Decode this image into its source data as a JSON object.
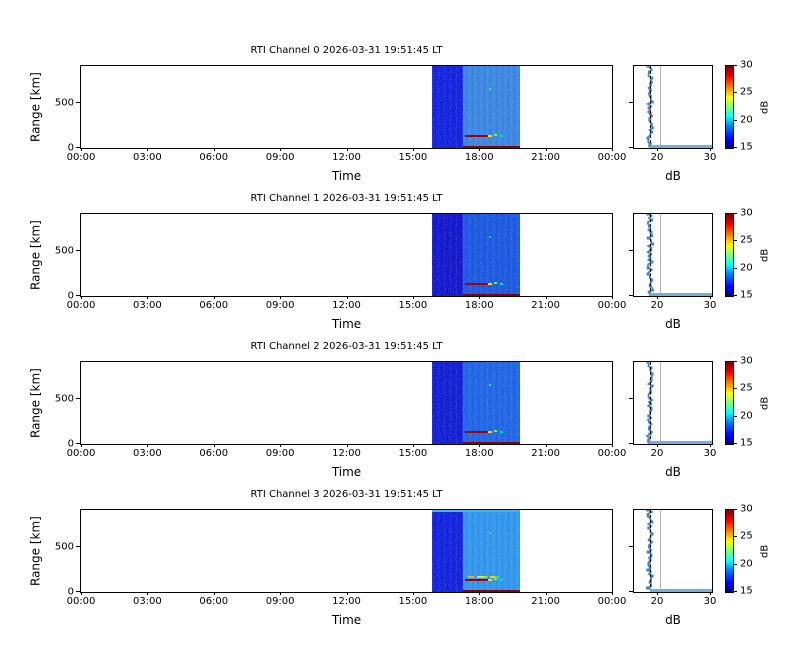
{
  "chart_data": {
    "type": "heatmap",
    "figure_kind": "RTI multi-panel radar display with side dB profiles and jet colorbars",
    "channels": [
      {
        "title": "RTI Channel 0 2026-03-31 19:51:45 LT",
        "colors": {
          "early": "#0415dc",
          "late": "#2e7fe0"
        },
        "top_strip": null,
        "strong_echo": false,
        "echo_range_km": 120,
        "noise_db": 18.3
      },
      {
        "title": "RTI Channel 1 2026-03-31 19:51:45 LT",
        "colors": {
          "early": "#0309c9",
          "late": "#0d4fdf"
        },
        "top_strip": null,
        "strong_echo": false,
        "echo_range_km": 120,
        "noise_db": 18.0
      },
      {
        "title": "RTI Channel 2 2026-03-31 19:51:45 LT",
        "colors": {
          "early": "#0310d2",
          "late": "#115ce4"
        },
        "top_strip": null,
        "strong_echo": false,
        "echo_range_km": 120,
        "noise_db": 18.1
      },
      {
        "title": "RTI Channel 3 2026-03-31 19:51:45 LT",
        "colors": {
          "early": "#0414da",
          "late": "#2490ec"
        },
        "top_strip": "#45b2ea",
        "strong_echo": true,
        "echo_range_km": 110,
        "noise_db": 18.5
      }
    ],
    "x_axis": {
      "label": "Time",
      "tick_labels": [
        "00:00",
        "03:00",
        "06:00",
        "09:00",
        "12:00",
        "15:00",
        "18:00",
        "21:00",
        "00:00"
      ],
      "range_hours": [
        0,
        24
      ]
    },
    "y_axis": {
      "label": "Range [km]",
      "tick_labels": [
        "500",
        "0"
      ],
      "tick_values": [
        500,
        0
      ],
      "range_km": [
        0,
        900
      ]
    },
    "heatmap": {
      "data_start": "15:51",
      "segment_boundary": "17:15",
      "data_end": "19:50",
      "clutter_color": "#8b0000",
      "echo_color": "#a50000",
      "speckle_colors": [
        "#ffe000",
        "#72f53c",
        "#00dccd"
      ],
      "mote_color": "#40ff80",
      "echo_description": "Thin backscatter echo near 110-130 km between ~17:25 and ~18:40, dark red core with yellow/green tail",
      "ground_clutter": "Dark red strip at 0 km range across 17:15-19:50"
    },
    "side_profile": {
      "xlabel": "dB",
      "tick_labels": [
        "20",
        "30"
      ],
      "xlim": [
        15,
        30
      ],
      "mean_noise_db": 18.3,
      "reference_db": 20,
      "line_color": "#3f85cc",
      "floor_color": "#6fb0dd",
      "ref_color": "#b4b4b4",
      "floor_description": "Light blue horizontal band at 0 km range spanning to 30 dB"
    },
    "colorbar": {
      "label": "dB",
      "tick_labels": [
        "30",
        "25",
        "20",
        "15"
      ],
      "tick_values": [
        30,
        25,
        20,
        15
      ],
      "clim": [
        15,
        30
      ],
      "colormap": "jet",
      "jet_stops": [
        {
          "color": "#000083",
          "pos": 0
        },
        {
          "color": "#0000ff",
          "pos": 11
        },
        {
          "color": "#0080ff",
          "pos": 27
        },
        {
          "color": "#00ffff",
          "pos": 38
        },
        {
          "color": "#7dff7a",
          "pos": 50
        },
        {
          "color": "#ffff00",
          "pos": 62
        },
        {
          "color": "#ff8400",
          "pos": 74
        },
        {
          "color": "#f40000",
          "pos": 87
        },
        {
          "color": "#800000",
          "pos": 100
        }
      ]
    }
  }
}
